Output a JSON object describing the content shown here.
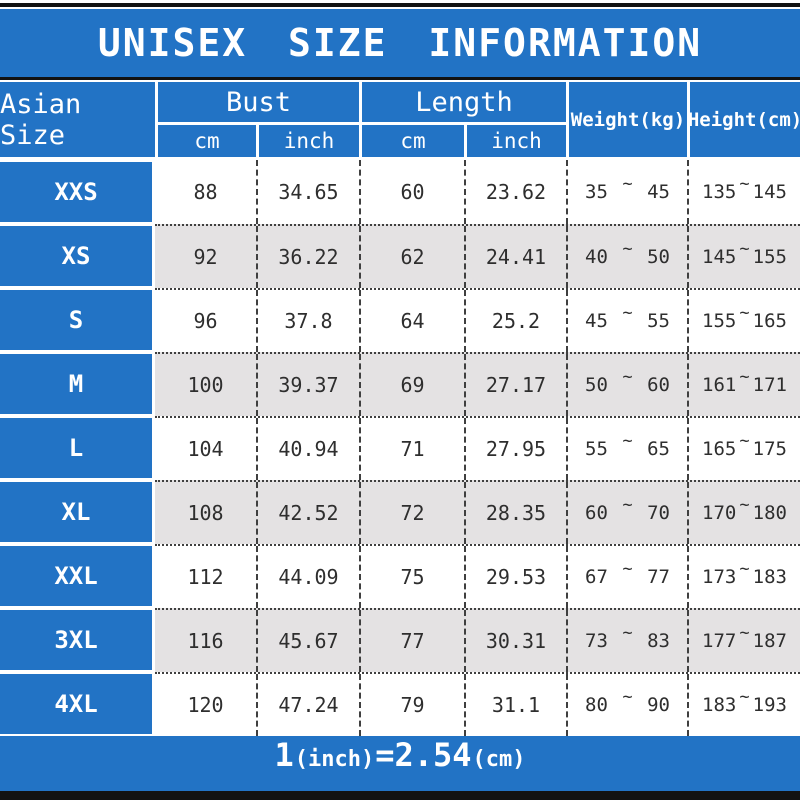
{
  "title": "UNISEX SIZE INFORMATION",
  "colors": {
    "blue": "#2273c5",
    "alt_row": "#e4e2e3",
    "text_dark": "#2e2e2e",
    "border_dark": "#3f3f3f",
    "black_bar": "#121212"
  },
  "header": {
    "size_col": "Asian Size",
    "bust": {
      "label": "Bust",
      "cm": "cm",
      "inch": "inch"
    },
    "length": {
      "label": "Length",
      "cm": "cm",
      "inch": "inch"
    },
    "weight": "Weight(kg)",
    "height": "Height(cm)"
  },
  "footer": {
    "num1": "1",
    "inch_label": "(inch)",
    "eq_num": "=2.54",
    "cm_label": "(cm)"
  },
  "chart_data": {
    "type": "table",
    "title": "UNISEX SIZE INFORMATION",
    "note": "1(inch)=2.54(cm)",
    "columns": [
      "Asian Size",
      "Bust cm",
      "Bust inch",
      "Length cm",
      "Length inch",
      "Weight(kg)",
      "Height(cm)"
    ],
    "tilde": "~",
    "rows": [
      {
        "size": "XXS",
        "bust_cm": "88",
        "bust_inch": "34.65",
        "length_cm": "60",
        "length_inch": "23.62",
        "weight_min": "35",
        "weight_max": "45",
        "height_min": "135",
        "height_max": "145"
      },
      {
        "size": "XS",
        "bust_cm": "92",
        "bust_inch": "36.22",
        "length_cm": "62",
        "length_inch": "24.41",
        "weight_min": "40",
        "weight_max": "50",
        "height_min": "145",
        "height_max": "155"
      },
      {
        "size": "S",
        "bust_cm": "96",
        "bust_inch": "37.8",
        "length_cm": "64",
        "length_inch": "25.2",
        "weight_min": "45",
        "weight_max": "55",
        "height_min": "155",
        "height_max": "165"
      },
      {
        "size": "M",
        "bust_cm": "100",
        "bust_inch": "39.37",
        "length_cm": "69",
        "length_inch": "27.17",
        "weight_min": "50",
        "weight_max": "60",
        "height_min": "161",
        "height_max": "171"
      },
      {
        "size": "L",
        "bust_cm": "104",
        "bust_inch": "40.94",
        "length_cm": "71",
        "length_inch": "27.95",
        "weight_min": "55",
        "weight_max": "65",
        "height_min": "165",
        "height_max": "175"
      },
      {
        "size": "XL",
        "bust_cm": "108",
        "bust_inch": "42.52",
        "length_cm": "72",
        "length_inch": "28.35",
        "weight_min": "60",
        "weight_max": "70",
        "height_min": "170",
        "height_max": "180"
      },
      {
        "size": "XXL",
        "bust_cm": "112",
        "bust_inch": "44.09",
        "length_cm": "75",
        "length_inch": "29.53",
        "weight_min": "67",
        "weight_max": "77",
        "height_min": "173",
        "height_max": "183"
      },
      {
        "size": "3XL",
        "bust_cm": "116",
        "bust_inch": "45.67",
        "length_cm": "77",
        "length_inch": "30.31",
        "weight_min": "73",
        "weight_max": "83",
        "height_min": "177",
        "height_max": "187"
      },
      {
        "size": "4XL",
        "bust_cm": "120",
        "bust_inch": "47.24",
        "length_cm": "79",
        "length_inch": "31.1",
        "weight_min": "80",
        "weight_max": "90",
        "height_min": "183",
        "height_max": "193"
      }
    ]
  }
}
